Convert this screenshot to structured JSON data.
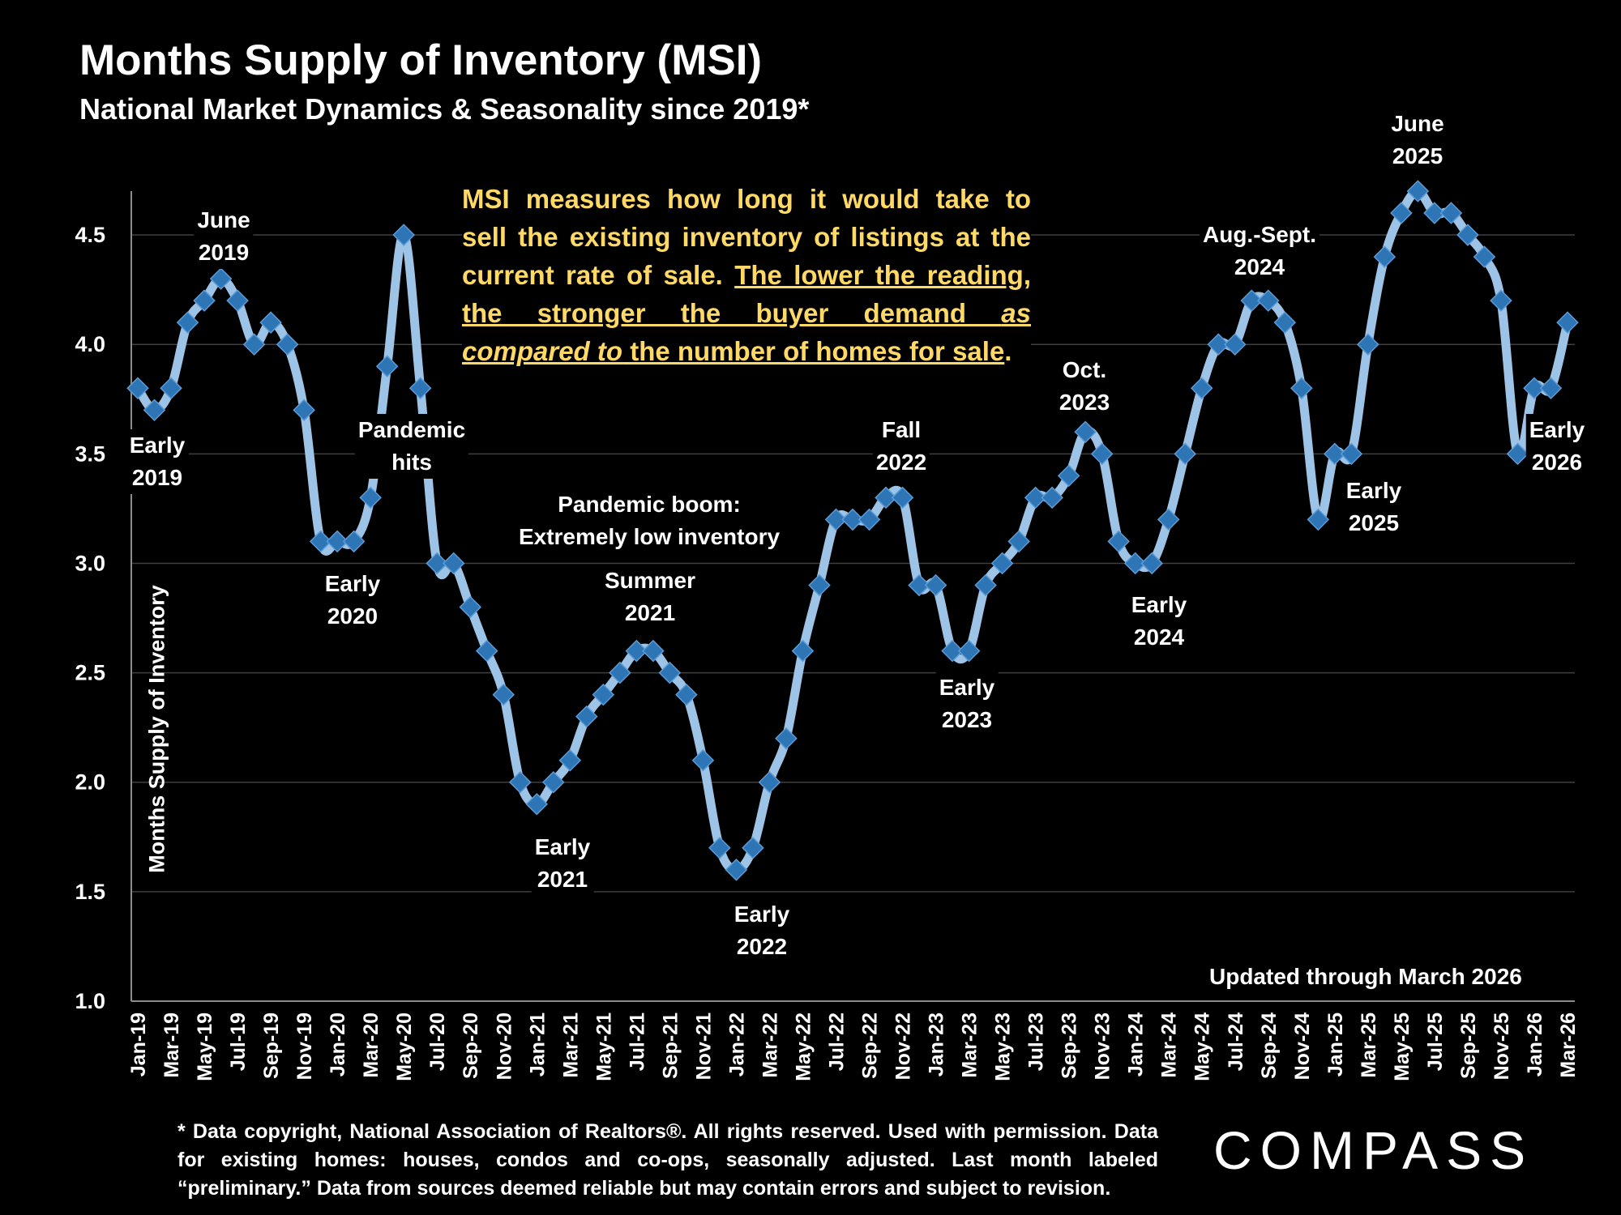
{
  "title": "Months Supply of Inventory (MSI)",
  "subtitle": "National Market Dynamics & Seasonality since 2019*",
  "note": {
    "line1": "MSI measures how long it would take to",
    "line2": "sell the existing inventory of listings at the",
    "line3_plain": "current rate of sale. ",
    "line3_underlined": "The lower the reading,",
    "line4": "the stronger the buyer demand ",
    "line4_italic": "as",
    "line5_italic": "compared to",
    "line5_rest": " the number of homes for sale",
    "line5_end": "."
  },
  "updated": "Updated through March 2026",
  "footer": "* Data copyright, National Association of Realtors®. All rights reserved. Used with permission. Data for existing homes: houses, condos and co-ops, seasonally adjusted. Last month labeled “preliminary.” Data from sources deemed reliable but may contain errors and subject to revision.",
  "logo": "COMPASS",
  "annotations": [
    {
      "text": "June\n2019"
    },
    {
      "text": "Early\n2019"
    },
    {
      "text": "Pandemic\nhits"
    },
    {
      "text": "Early\n2020"
    },
    {
      "text": "Pandemic boom:\nExtremely low inventory"
    },
    {
      "text": "Summer\n2021"
    },
    {
      "text": "Early\n2021"
    },
    {
      "text": "Early\n2022"
    },
    {
      "text": "Fall\n2022"
    },
    {
      "text": "Early\n2023"
    },
    {
      "text": "Oct.\n2023"
    },
    {
      "text": "Early\n2024"
    },
    {
      "text": "Aug.-Sept.\n2024"
    },
    {
      "text": "June\n2025"
    },
    {
      "text": "Early\n2025"
    },
    {
      "text": "Early\n2026"
    }
  ],
  "chart_data": {
    "type": "line",
    "title": "Months Supply of Inventory (MSI)",
    "ylabel": "Months Supply of Inventory",
    "xlabel": "",
    "ylim": [
      1.0,
      4.7
    ],
    "yticks": [
      "1.0",
      "1.5",
      "2.0",
      "2.5",
      "3.0",
      "3.5",
      "4.0",
      "4.5"
    ],
    "grid": true,
    "colors": {
      "line": "#9DC3E6",
      "marker": "#2E75B6",
      "marker_edge": "#5B9BD5",
      "note": "#FFD966"
    },
    "x": [
      "Jan-19",
      "Feb-19",
      "Mar-19",
      "Apr-19",
      "May-19",
      "Jun-19",
      "Jul-19",
      "Aug-19",
      "Sep-19",
      "Oct-19",
      "Nov-19",
      "Dec-19",
      "Jan-20",
      "Feb-20",
      "Mar-20",
      "Apr-20",
      "May-20",
      "Jun-20",
      "Jul-20",
      "Aug-20",
      "Sep-20",
      "Oct-20",
      "Nov-20",
      "Dec-20",
      "Jan-21",
      "Feb-21",
      "Mar-21",
      "Apr-21",
      "May-21",
      "Jun-21",
      "Jul-21",
      "Aug-21",
      "Sep-21",
      "Oct-21",
      "Nov-21",
      "Dec-21",
      "Jan-22",
      "Feb-22",
      "Mar-22",
      "Apr-22",
      "May-22",
      "Jun-22",
      "Jul-22",
      "Aug-22",
      "Sep-22",
      "Oct-22",
      "Nov-22",
      "Dec-22",
      "Jan-23",
      "Feb-23",
      "Mar-23",
      "Apr-23",
      "May-23",
      "Jun-23",
      "Jul-23",
      "Aug-23",
      "Sep-23",
      "Oct-23",
      "Nov-23",
      "Dec-23",
      "Jan-24",
      "Feb-24",
      "Mar-24",
      "Apr-24",
      "May-24",
      "Jun-24",
      "Jul-24",
      "Aug-24",
      "Sep-24",
      "Oct-24",
      "Nov-24",
      "Dec-24",
      "Jan-25",
      "Feb-25",
      "Mar-25",
      "Apr-25",
      "May-25",
      "Jun-25",
      "Jul-25",
      "Aug-25",
      "Sep-25",
      "Oct-25",
      "Nov-25",
      "Dec-25",
      "Jan-26",
      "Feb-26",
      "Mar-26"
    ],
    "xtick_labels": [
      "Jan-19",
      "Mar-19",
      "May-19",
      "Jul-19",
      "Sep-19",
      "Nov-19",
      "Jan-20",
      "Mar-20",
      "May-20",
      "Jul-20",
      "Sep-20",
      "Nov-20",
      "Jan-21",
      "Mar-21",
      "May-21",
      "Jul-21",
      "Sep-21",
      "Nov-21",
      "Jan-22",
      "Mar-22",
      "May-22",
      "Jul-22",
      "Sep-22",
      "Nov-22",
      "Jan-23",
      "Mar-23",
      "May-23",
      "Jul-23",
      "Sep-23",
      "Nov-23",
      "Jan-24",
      "Mar-24",
      "May-24",
      "Jul-24",
      "Sep-24",
      "Nov-24",
      "Jan-25",
      "Mar-25",
      "May-25",
      "Jul-25",
      "Sep-25",
      "Nov-25",
      "Jan-26",
      "Mar-26"
    ],
    "series": [
      {
        "values": [
          3.8,
          3.7,
          3.8,
          4.1,
          4.2,
          4.3,
          4.2,
          4.0,
          4.1,
          4.0,
          3.7,
          3.1,
          3.1,
          3.1,
          3.3,
          3.9,
          4.5,
          3.8,
          3.0,
          3.0,
          2.8,
          2.6,
          2.4,
          2.0,
          1.9,
          2.0,
          2.1,
          2.3,
          2.4,
          2.5,
          2.6,
          2.6,
          2.5,
          2.4,
          2.1,
          1.7,
          1.6,
          1.7,
          2.0,
          2.2,
          2.6,
          2.9,
          3.2,
          3.2,
          3.2,
          3.3,
          3.3,
          2.9,
          2.9,
          2.6,
          2.6,
          2.9,
          3.0,
          3.1,
          3.3,
          3.3,
          3.4,
          3.6,
          3.5,
          3.1,
          3.0,
          3.0,
          3.2,
          3.5,
          3.8,
          4.0,
          4.0,
          4.2,
          4.2,
          4.1,
          3.8,
          3.2,
          3.5,
          3.5,
          4.0,
          4.4,
          4.6,
          4.7,
          4.6,
          4.6,
          4.5,
          4.4,
          4.2,
          3.5,
          3.8,
          3.8,
          4.1
        ]
      }
    ]
  }
}
